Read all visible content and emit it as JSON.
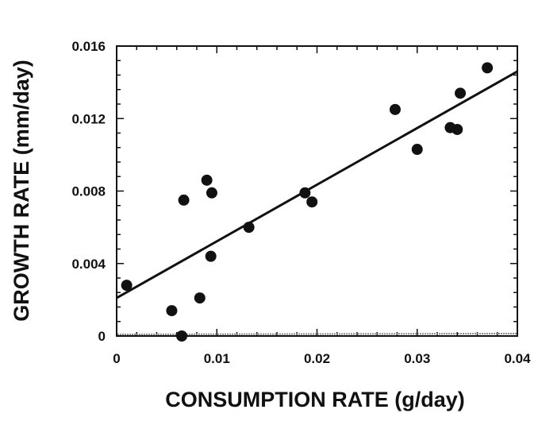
{
  "chart_data": {
    "type": "scatter",
    "title": "",
    "xlabel": "CONSUMPTION RATE (g/day)",
    "ylabel": "GROWTH RATE (mm/day)",
    "xlim": [
      0,
      0.04
    ],
    "ylim": [
      0,
      0.016
    ],
    "x_ticks": [
      {
        "value": 0,
        "label": "0"
      },
      {
        "value": 0.01,
        "label": "0.01"
      },
      {
        "value": 0.02,
        "label": "0.02"
      },
      {
        "value": 0.03,
        "label": "0.03"
      },
      {
        "value": 0.04,
        "label": "0.04"
      }
    ],
    "y_ticks": [
      {
        "value": 0,
        "label": "0"
      },
      {
        "value": 0.004,
        "label": "0.004"
      },
      {
        "value": 0.008,
        "label": "0.008"
      },
      {
        "value": 0.012,
        "label": "0.012"
      },
      {
        "value": 0.016,
        "label": "0.016"
      }
    ],
    "series": [
      {
        "points": [
          {
            "x": 0.001,
            "y": 0.0028
          },
          {
            "x": 0.0055,
            "y": 0.0014
          },
          {
            "x": 0.0065,
            "y": 0.0
          },
          {
            "x": 0.0067,
            "y": 0.0075
          },
          {
            "x": 0.0083,
            "y": 0.0021
          },
          {
            "x": 0.009,
            "y": 0.0086
          },
          {
            "x": 0.0094,
            "y": 0.0044
          },
          {
            "x": 0.0095,
            "y": 0.0079
          },
          {
            "x": 0.0132,
            "y": 0.006
          },
          {
            "x": 0.0188,
            "y": 0.0079
          },
          {
            "x": 0.0195,
            "y": 0.0074
          },
          {
            "x": 0.0278,
            "y": 0.0125
          },
          {
            "x": 0.03,
            "y": 0.0103
          },
          {
            "x": 0.0333,
            "y": 0.0115
          },
          {
            "x": 0.034,
            "y": 0.0114
          },
          {
            "x": 0.0343,
            "y": 0.0134
          },
          {
            "x": 0.037,
            "y": 0.0148
          }
        ]
      }
    ],
    "fit_line": {
      "x": [
        0,
        0.04
      ],
      "y": [
        0.0021,
        0.0146
      ]
    },
    "zero_line": {
      "y": 0
    },
    "grid": false,
    "colors": {
      "marks": "#111111",
      "zero_line": "#8a8a8a"
    }
  }
}
